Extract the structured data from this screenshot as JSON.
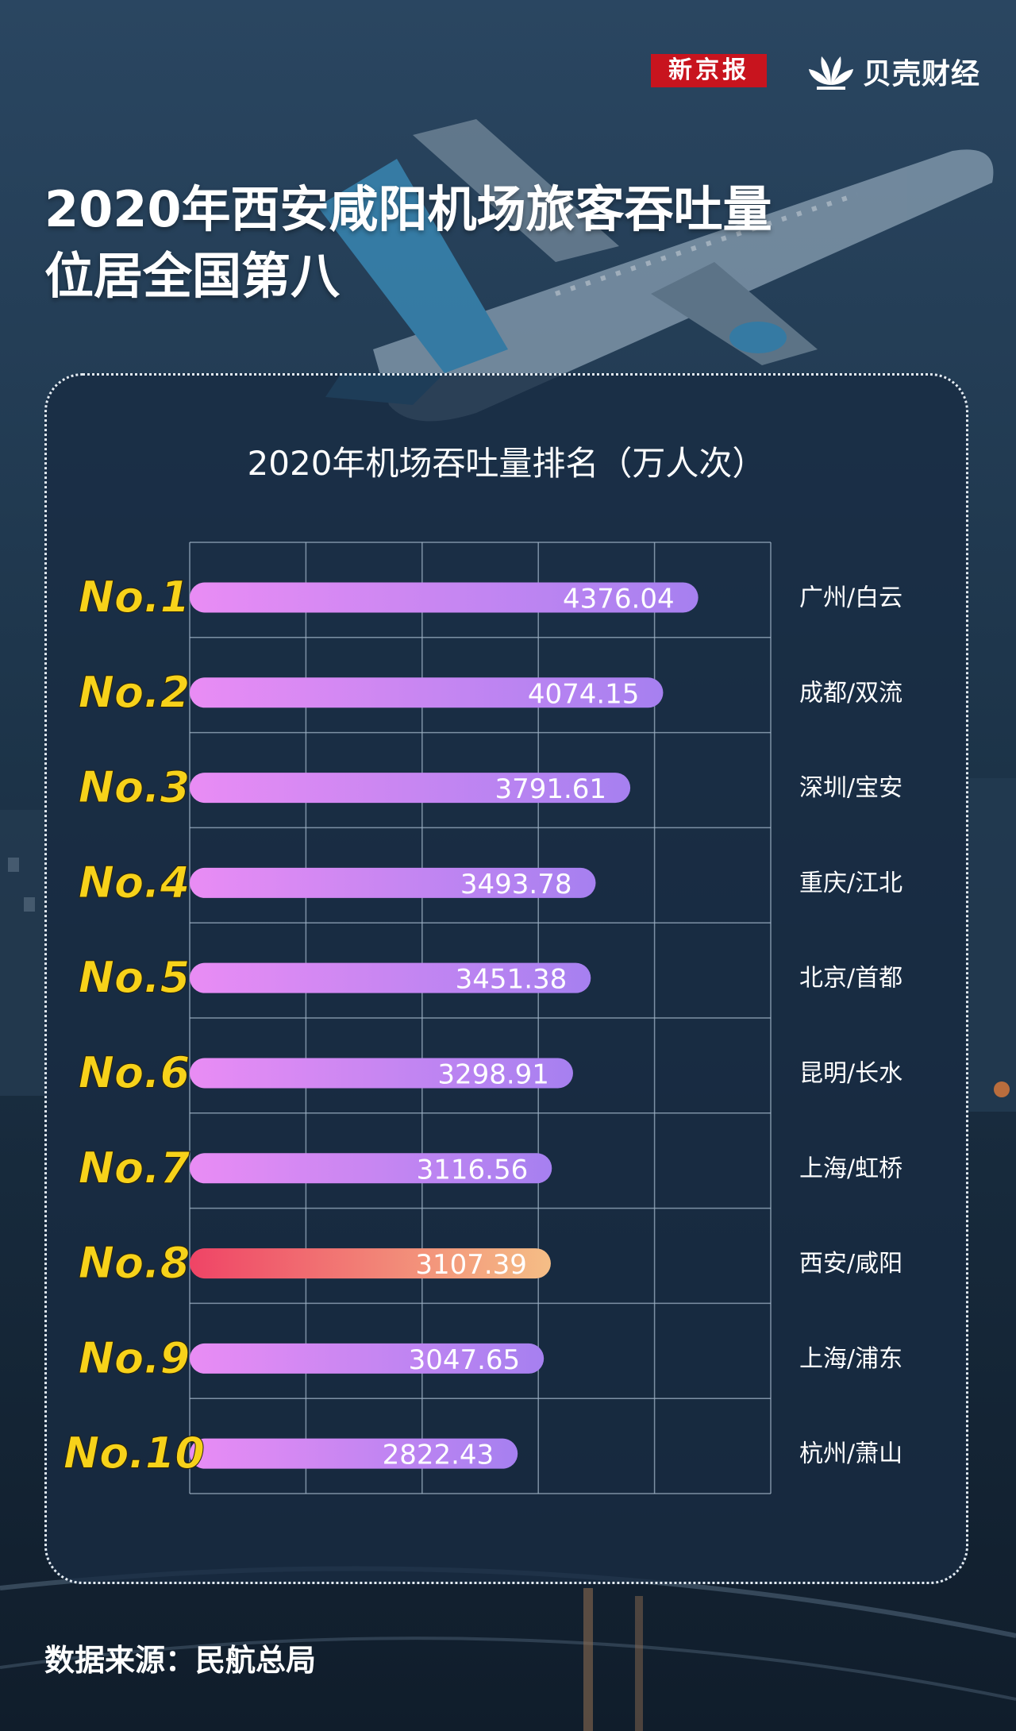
{
  "header": {
    "brand_left": "新京报",
    "brand_right": "贝壳财经",
    "title_line1": "2020年西安咸阳机场旅客吞吐量",
    "title_line2": "位居全国第八"
  },
  "footer": {
    "source": "数据来源：民航总局"
  },
  "colors": {
    "bar_start": "#e98cf4",
    "bar_end": "#a680f0",
    "highlight_start": "#ef4466",
    "highlight_end": "#f5be86",
    "rank_label": "#f7d21a"
  },
  "chart_data": {
    "type": "bar",
    "orientation": "horizontal",
    "title": "2020年机场吞吐量排名（万人次）",
    "categories": [
      "广州/白云",
      "成都/双流",
      "深圳/宝安",
      "重庆/江北",
      "北京/首都",
      "昆明/长水",
      "上海/虹桥",
      "西安/咸阳",
      "上海/浦东",
      "杭州/萧山"
    ],
    "ranks": [
      "No.1",
      "No.2",
      "No.3",
      "No.4",
      "No.5",
      "No.6",
      "No.7",
      "No.8",
      "No.9",
      "No.10"
    ],
    "values": [
      4376.04,
      4074.15,
      3791.61,
      3493.78,
      3451.38,
      3298.91,
      3116.56,
      3107.39,
      3047.65,
      2822.43
    ],
    "value_labels": [
      "4376.04",
      "4074.15",
      "3791.61",
      "3493.78",
      "3451.38",
      "3298.91",
      "3116.56",
      "3107.39",
      "3047.65",
      "2822.43"
    ],
    "highlight_index": 7,
    "xlim": [
      0,
      5000
    ],
    "grid": true,
    "legend": "none"
  }
}
